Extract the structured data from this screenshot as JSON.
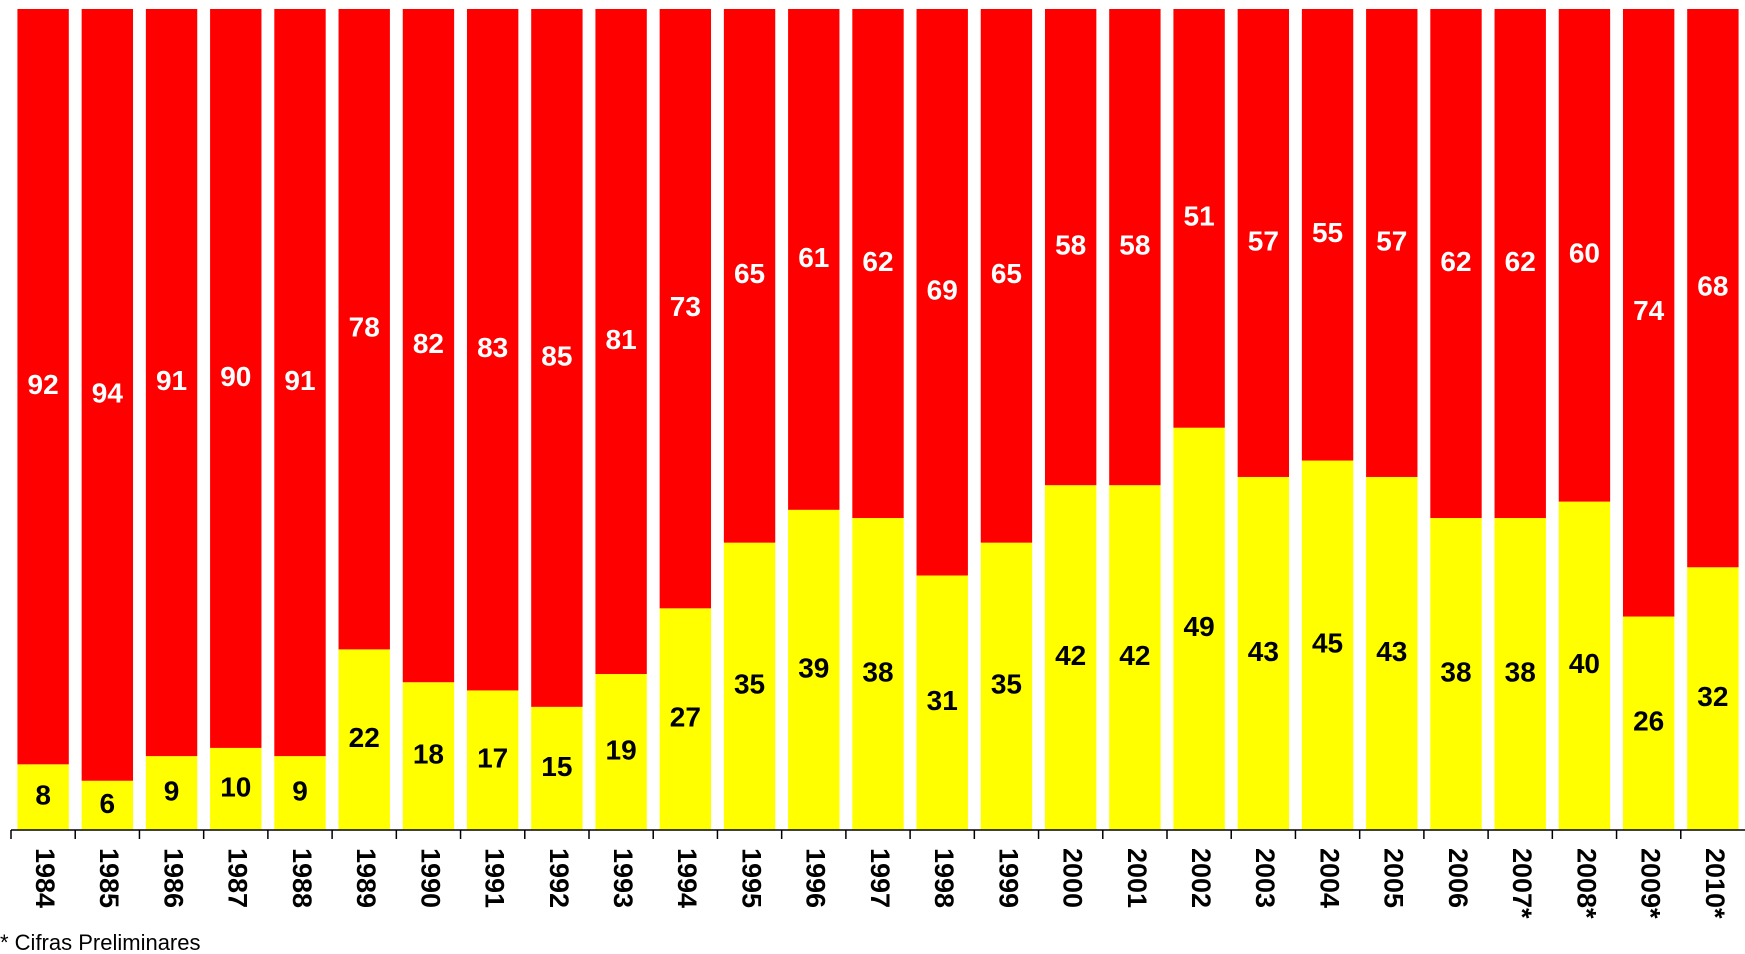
{
  "chart_data": {
    "type": "bar",
    "stacked": true,
    "categories": [
      "1984",
      "1985",
      "1986",
      "1987",
      "1988",
      "1989",
      "1990",
      "1991",
      "1992",
      "1993",
      "1994",
      "1995",
      "1996",
      "1997",
      "1998",
      "1999",
      "2000",
      "2001",
      "2002",
      "2003",
      "2004",
      "2005",
      "2006",
      "2007*",
      "2008*",
      "2009*",
      "2010*"
    ],
    "series": [
      {
        "color": "#ffff00",
        "label_color": "#000000",
        "values": [
          8,
          6,
          9,
          10,
          9,
          22,
          18,
          17,
          15,
          19,
          27,
          35,
          39,
          38,
          31,
          35,
          42,
          42,
          49,
          43,
          45,
          43,
          38,
          38,
          40,
          26,
          32
        ]
      },
      {
        "color": "#ff0000",
        "label_color": "#ffffff",
        "values": [
          92,
          94,
          91,
          90,
          91,
          78,
          82,
          83,
          85,
          81,
          73,
          65,
          61,
          62,
          69,
          65,
          58,
          58,
          51,
          57,
          55,
          57,
          62,
          62,
          60,
          74,
          68
        ]
      }
    ],
    "ylim": [
      0,
      100
    ],
    "footnote": "* Cifras Preliminares"
  }
}
